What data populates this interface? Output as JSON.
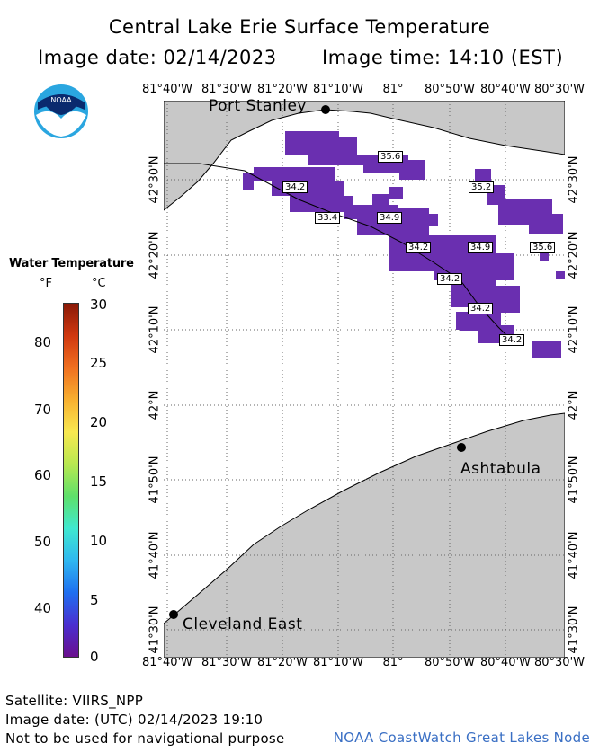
{
  "header": {
    "title": "Central Lake Erie Surface Temperature",
    "image_date_label": "Image date: 02/14/2023",
    "image_time_label": "Image time: 14:10 (EST)"
  },
  "logo": {
    "text": "NOAA",
    "icon": "noaa-logo-icon"
  },
  "map": {
    "top_ticks": [
      "81°40'W",
      "81°30'W",
      "81°20'W",
      "81°10'W",
      "81°",
      "80°50'W",
      "80°40'W",
      "80°30'W"
    ],
    "bottom_ticks": [
      "81°40'W",
      "81°30'W",
      "81°20'W",
      "81°10'W",
      "81°",
      "80°50'W",
      "80°40'W",
      "80°30'W"
    ],
    "lat_ticks": [
      "42°30'N",
      "42°20'N",
      "42°10'N",
      "42°N",
      "41°50'N",
      "41°40'N",
      "41°30'N"
    ],
    "cities": [
      {
        "name": "Port Stanley"
      },
      {
        "name": "Ashtabula"
      },
      {
        "name": "Cleveland East"
      }
    ],
    "temperature_labels": [
      "35.6",
      "34.2",
      "35.2",
      "33.4",
      "34.9",
      "34.2",
      "34.9",
      "35.6",
      "34.2",
      "34.2",
      "34.2"
    ],
    "colors": {
      "land": "#c8c8c8",
      "water": "#ffffff",
      "ice_free_sst": "#6a2fb0",
      "grid": "#666666"
    }
  },
  "legend": {
    "title": "Water Temperature",
    "unit_f": "°F",
    "unit_c": "°C",
    "f_ticks": [
      "80",
      "70",
      "60",
      "50",
      "40"
    ],
    "c_ticks": [
      "30",
      "25",
      "20",
      "15",
      "10",
      "5",
      "0"
    ],
    "range_c": [
      0,
      30
    ],
    "colormap": [
      "#6a0f8e",
      "#4a2fd0",
      "#1f6ff0",
      "#2fb8f0",
      "#40e8d0",
      "#5ee06a",
      "#b8e850",
      "#f8e850",
      "#f8b030",
      "#f07020",
      "#d03810",
      "#8a1a08"
    ]
  },
  "footer": {
    "satellite": "Satellite: VIIRS_NPP",
    "utc_date": "Image date: (UTC) 02/14/2023  19:10",
    "disclaimer": "Not to be used for navigational purpose",
    "credit": "NOAA CoastWatch Great Lakes Node"
  }
}
